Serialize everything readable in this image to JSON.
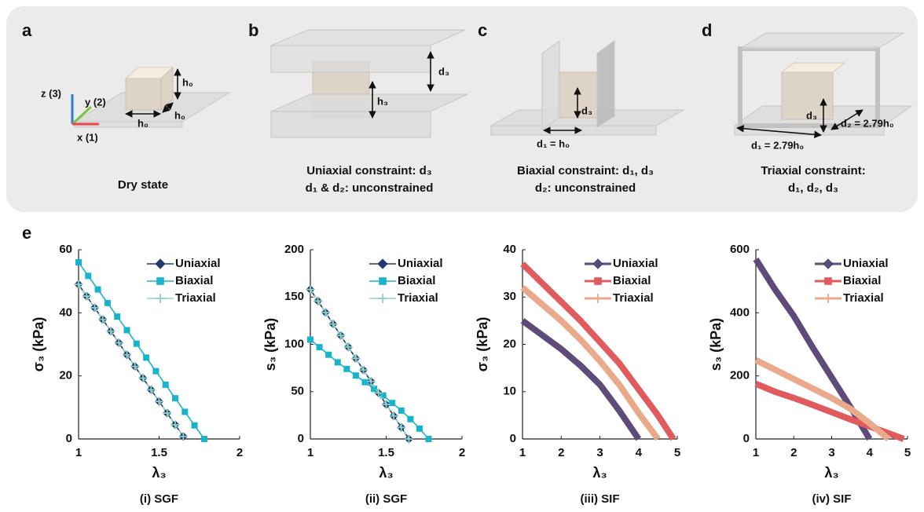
{
  "figure": {
    "panels": [
      {
        "label": "a",
        "caption": [
          "Dry state"
        ],
        "annotations": [
          "z (3)",
          "y (2)",
          "x (1)",
          "h₀",
          "h₀",
          "h₀"
        ]
      },
      {
        "label": "b",
        "caption": [
          "Uniaxial constraint: d₃",
          "d₁ & d₂: unconstrained"
        ],
        "annotations": [
          "d₃",
          "h₃"
        ]
      },
      {
        "label": "c",
        "caption": [
          "Biaxial constraint: d₁, d₃",
          "d₂: unconstrained"
        ],
        "annotations": [
          "d₃",
          "d₁ = h₀"
        ]
      },
      {
        "label": "d",
        "caption": [
          "Triaxial constraint:",
          "d₁, d₂, d₃"
        ],
        "annotations": [
          "d₃",
          "d₂ = 2.79h₀",
          "d₁ = 2.79h₀"
        ]
      }
    ],
    "charts_label": "e"
  },
  "chart_data": [
    {
      "type": "line",
      "caption": "(i) SGF",
      "xlabel": "λ₃",
      "ylabel": "σ₃ (kPa)",
      "xlim": [
        1,
        2
      ],
      "xticks": [
        1,
        1.5,
        2
      ],
      "ylim": [
        0,
        60
      ],
      "yticks": [
        0,
        20,
        40,
        60
      ],
      "legend": "upper right",
      "markers_on_points": true,
      "series": [
        {
          "name": "Uniaxial",
          "color": "#1f3a6e",
          "marker": "diamond",
          "line_style": "solid",
          "x": [
            1,
            1.05,
            1.1,
            1.15,
            1.2,
            1.25,
            1.3,
            1.35,
            1.4,
            1.45,
            1.5,
            1.55,
            1.6,
            1.65
          ],
          "values": [
            49,
            45.3,
            41.6,
            37.9,
            34.2,
            30.5,
            26.7,
            23.0,
            19.3,
            15.6,
            11.9,
            8.2,
            4.5,
            0.8
          ]
        },
        {
          "name": "Biaxial",
          "color": "#19b3cc",
          "marker": "square",
          "line_style": "solid",
          "x": [
            1,
            1.06,
            1.12,
            1.18,
            1.24,
            1.3,
            1.36,
            1.42,
            1.48,
            1.54,
            1.6,
            1.66,
            1.72,
            1.78
          ],
          "values": [
            56,
            51.7,
            47.4,
            43.1,
            38.8,
            34.5,
            30.2,
            25.8,
            21.5,
            17.2,
            12.9,
            8.6,
            4.3,
            0
          ]
        },
        {
          "name": "Triaxial",
          "color": "#8fd1c4",
          "marker": "plus",
          "line_style": "dashed",
          "x": [
            1,
            1.05,
            1.1,
            1.15,
            1.2,
            1.25,
            1.3,
            1.35,
            1.4,
            1.45,
            1.5,
            1.55,
            1.6,
            1.65
          ],
          "values": [
            49,
            45.3,
            41.6,
            37.9,
            34.2,
            30.5,
            26.7,
            23.0,
            19.3,
            15.6,
            11.9,
            8.2,
            4.5,
            0.8
          ]
        }
      ]
    },
    {
      "type": "line",
      "caption": "(ii) SGF",
      "xlabel": "λ₃",
      "ylabel": "s₃ (kPa)",
      "xlim": [
        1,
        2
      ],
      "xticks": [
        1,
        1.5,
        2
      ],
      "ylim": [
        0,
        200
      ],
      "yticks": [
        0,
        50,
        100,
        150,
        200
      ],
      "legend": "upper right",
      "markers_on_points": true,
      "series": [
        {
          "name": "Uniaxial",
          "color": "#1f3a6e",
          "marker": "diamond",
          "line_style": "solid",
          "x": [
            1,
            1.05,
            1.1,
            1.15,
            1.2,
            1.25,
            1.3,
            1.35,
            1.4,
            1.45,
            1.5,
            1.55,
            1.6,
            1.65
          ],
          "values": [
            158,
            145.8,
            133.7,
            121.5,
            109.4,
            97.2,
            85.1,
            72.9,
            60.8,
            48.6,
            36.5,
            24.3,
            12.2,
            0
          ]
        },
        {
          "name": "Biaxial",
          "color": "#19b3cc",
          "marker": "square",
          "line_style": "solid",
          "x": [
            1,
            1.06,
            1.12,
            1.18,
            1.24,
            1.3,
            1.36,
            1.42,
            1.48,
            1.54,
            1.6,
            1.66,
            1.72,
            1.78
          ],
          "values": [
            105,
            97,
            89,
            81,
            74,
            67,
            60,
            53,
            46,
            38,
            30,
            21,
            11,
            0
          ]
        },
        {
          "name": "Triaxial",
          "color": "#8fd1c4",
          "marker": "plus",
          "line_style": "dashed",
          "x": [
            1,
            1.05,
            1.1,
            1.15,
            1.2,
            1.25,
            1.3,
            1.35,
            1.4,
            1.45,
            1.5,
            1.55,
            1.6,
            1.65
          ],
          "values": [
            158,
            145.8,
            133.7,
            121.5,
            109.4,
            97.2,
            85.1,
            72.9,
            60.8,
            48.6,
            36.5,
            24.3,
            12.2,
            0
          ]
        }
      ]
    },
    {
      "type": "line",
      "caption": "(iii) SIF",
      "xlabel": "λ₃",
      "ylabel": "σ₃ (kPa)",
      "xlim": [
        1,
        5
      ],
      "xticks": [
        1,
        2,
        3,
        4,
        5
      ],
      "ylim": [
        0,
        40
      ],
      "yticks": [
        0,
        10,
        20,
        30,
        40
      ],
      "legend": "upper right",
      "markers_on_points": false,
      "series": [
        {
          "name": "Uniaxial",
          "color": "#5e4b7a",
          "marker": "diamond",
          "line_style": "solid",
          "x": [
            1,
            1.5,
            2,
            2.5,
            3,
            3.5,
            4
          ],
          "values": [
            25,
            22,
            19,
            15.5,
            11.5,
            6,
            0
          ]
        },
        {
          "name": "Biaxial",
          "color": "#e05a5e",
          "marker": "square",
          "line_style": "solid",
          "x": [
            1,
            1.5,
            2,
            2.5,
            3,
            3.5,
            4,
            4.5,
            4.9
          ],
          "values": [
            37,
            33,
            29,
            25,
            20.5,
            16,
            10.5,
            5,
            0
          ]
        },
        {
          "name": "Triaxial",
          "color": "#e9a98a",
          "marker": "plus",
          "line_style": "solid",
          "x": [
            1,
            1.5,
            2,
            2.5,
            3,
            3.5,
            4,
            4.5
          ],
          "values": [
            32,
            28.5,
            25,
            21,
            16.5,
            11.5,
            5.5,
            0
          ]
        }
      ]
    },
    {
      "type": "line",
      "caption": "(iv) SIF",
      "xlabel": "λ₃",
      "ylabel": "s₃ (kPa)",
      "xlim": [
        1,
        5
      ],
      "xticks": [
        1,
        2,
        3,
        4,
        5
      ],
      "ylim": [
        0,
        600
      ],
      "yticks": [
        0,
        200,
        400,
        600
      ],
      "legend": "upper right",
      "markers_on_points": false,
      "series": [
        {
          "name": "Uniaxial",
          "color": "#5e4b7a",
          "marker": "diamond",
          "line_style": "solid",
          "x": [
            1,
            1.5,
            2,
            2.5,
            3,
            3.5,
            4
          ],
          "values": [
            570,
            475,
            390,
            290,
            195,
            100,
            0
          ]
        },
        {
          "name": "Biaxial",
          "color": "#e05a5e",
          "marker": "square",
          "line_style": "solid",
          "x": [
            1,
            1.5,
            2,
            2.5,
            3,
            3.5,
            4,
            4.5,
            4.9
          ],
          "values": [
            175,
            150,
            130,
            108,
            85,
            62,
            40,
            18,
            0
          ]
        },
        {
          "name": "Triaxial",
          "color": "#e9a98a",
          "marker": "plus",
          "line_style": "solid",
          "x": [
            1,
            1.5,
            2,
            2.5,
            3,
            3.5,
            4,
            4.5
          ],
          "values": [
            250,
            220,
            190,
            160,
            130,
            95,
            50,
            0
          ]
        }
      ]
    }
  ]
}
